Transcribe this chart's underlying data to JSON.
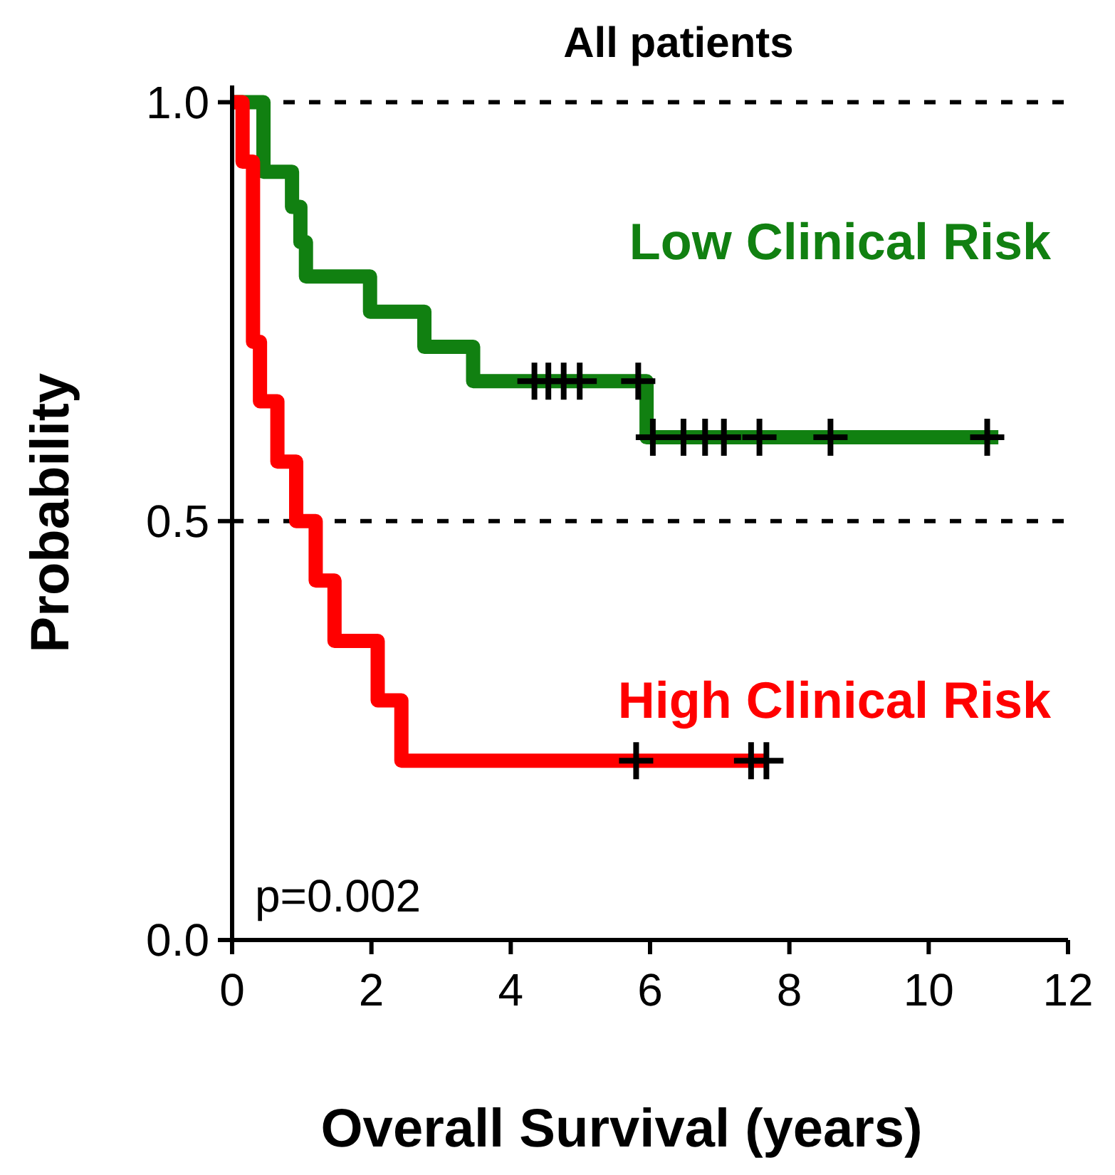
{
  "chart_data": {
    "type": "step",
    "title": "All patients",
    "xlabel": "Overall Survival (years)",
    "ylabel": "Probability",
    "annotations": [
      "p=0.002"
    ],
    "xlim": [
      0,
      12
    ],
    "xticks": [
      0,
      2,
      4,
      6,
      8,
      10,
      12
    ],
    "ylim": [
      0,
      1.02
    ],
    "yticks": [
      {
        "value": 0,
        "label": "0.0"
      },
      {
        "value": 0.5,
        "label": "0.5"
      },
      {
        "value": 1,
        "label": "1.0"
      }
    ],
    "grid": false,
    "line_style": "solid",
    "ref_lines": [
      {
        "axis": "y",
        "value": 1,
        "color": "#000000",
        "line_style": "dashed"
      },
      {
        "axis": "y",
        "value": 0.5,
        "color": "#000000",
        "line_style": "dashed"
      }
    ],
    "series": [
      {
        "name": "Low Clinical Risk",
        "color": "#118011",
        "x": [
          0,
          0.45,
          0.86,
          0.98,
          1.06,
          1.98,
          2.76,
          3.46,
          5.95,
          11.0
        ],
        "values": [
          1,
          0.917,
          0.875,
          0.833,
          0.792,
          0.75,
          0.708,
          0.667,
          0.6,
          0.6
        ]
      },
      {
        "name": "High Clinical Risk",
        "color": "#ff0000",
        "x": [
          0,
          0.15,
          0.3,
          0.4,
          0.65,
          0.92,
          1.2,
          1.47,
          2.09,
          2.43,
          7.7
        ],
        "values": [
          1,
          0.929,
          0.714,
          0.643,
          0.571,
          0.5,
          0.429,
          0.357,
          0.286,
          0.214,
          0.214
        ]
      },
      {
        "type": "scatter",
        "marker": "cross",
        "color": "#000000",
        "x": [
          4.34,
          4.54,
          4.76,
          4.99,
          5.83,
          6.04,
          6.48,
          6.79,
          7.06,
          7.57,
          8.59,
          10.84
        ],
        "values": [
          0.667,
          0.667,
          0.667,
          0.667,
          0.667,
          0.6,
          0.6,
          0.6,
          0.6,
          0.6,
          0.6,
          0.6
        ]
      },
      {
        "type": "scatter",
        "marker": "cross",
        "color": "#000000",
        "x": [
          5.8,
          7.45,
          7.67
        ],
        "values": [
          0.214,
          0.214,
          0.214
        ]
      }
    ]
  }
}
